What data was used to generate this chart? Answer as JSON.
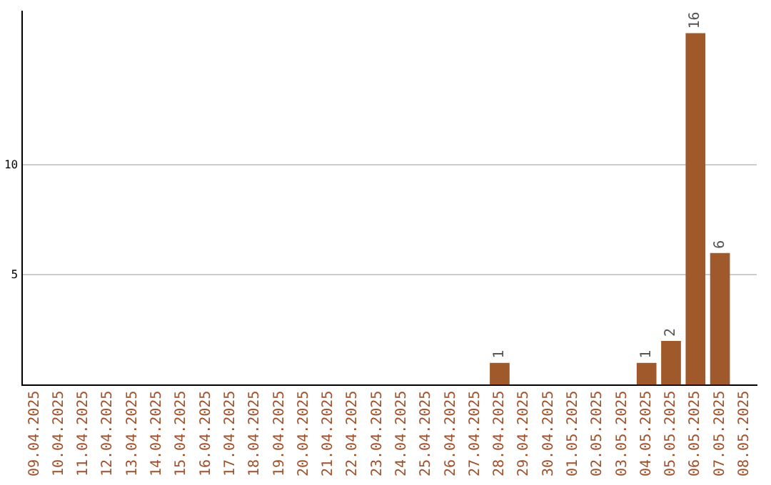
{
  "chart_data": {
    "type": "bar",
    "categories": [
      "09.04.2025",
      "10.04.2025",
      "11.04.2025",
      "12.04.2025",
      "13.04.2025",
      "14.04.2025",
      "15.04.2025",
      "16.04.2025",
      "17.04.2025",
      "18.04.2025",
      "19.04.2025",
      "20.04.2025",
      "21.04.2025",
      "22.04.2025",
      "23.04.2025",
      "24.04.2025",
      "25.04.2025",
      "26.04.2025",
      "27.04.2025",
      "28.04.2025",
      "29.04.2025",
      "30.04.2025",
      "01.05.2025",
      "02.05.2025",
      "03.05.2025",
      "04.05.2025",
      "05.05.2025",
      "06.05.2025",
      "07.05.2025",
      "08.05.2025"
    ],
    "values": [
      0,
      0,
      0,
      0,
      0,
      0,
      0,
      0,
      0,
      0,
      0,
      0,
      0,
      0,
      0,
      0,
      0,
      0,
      0,
      1,
      0,
      0,
      0,
      0,
      0,
      1,
      2,
      16,
      6,
      0
    ],
    "value_labels": [
      null,
      null,
      null,
      null,
      null,
      null,
      null,
      null,
      null,
      null,
      null,
      null,
      null,
      null,
      null,
      null,
      null,
      null,
      null,
      "1",
      null,
      null,
      null,
      null,
      null,
      "1",
      "2",
      "16",
      "6",
      null
    ],
    "color": "#a0592a",
    "ylim": [
      0,
      17
    ],
    "yticks": [
      5,
      10
    ],
    "grid": "y",
    "legend": false
  }
}
